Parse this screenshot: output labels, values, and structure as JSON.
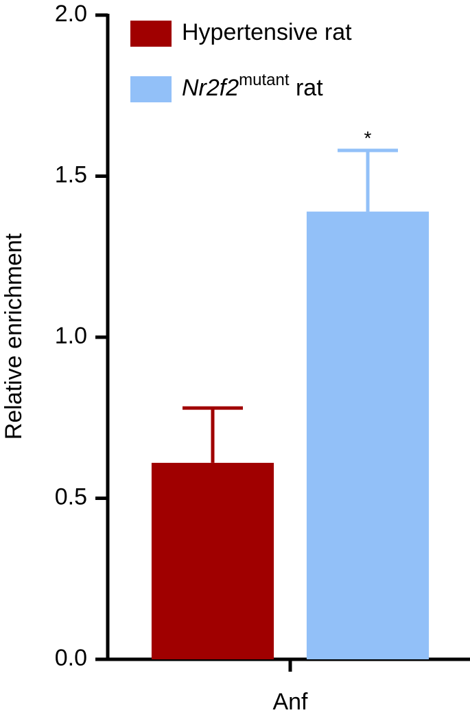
{
  "chart_data": {
    "type": "bar",
    "y_label": "Relative enrichment",
    "categories": [
      "Anf"
    ],
    "series": [
      {
        "name": "Hypertensive rat",
        "color": "#a00000",
        "values": [
          0.61
        ],
        "errors": [
          0.17
        ]
      },
      {
        "name": [
          "Nr2f2",
          "mutant",
          " rat"
        ],
        "color": "#92c0f8",
        "values": [
          1.39
        ],
        "errors": [
          0.19
        ],
        "annotation": "*"
      }
    ],
    "ylim": [
      0,
      2
    ],
    "yticks": [
      {
        "value": 0,
        "label": "0.0"
      },
      {
        "value": 0.5,
        "label": "0.5"
      },
      {
        "value": 1,
        "label": "1.0"
      },
      {
        "value": 1.5,
        "label": "1.5"
      },
      {
        "value": 2,
        "label": "2.0"
      }
    ]
  }
}
